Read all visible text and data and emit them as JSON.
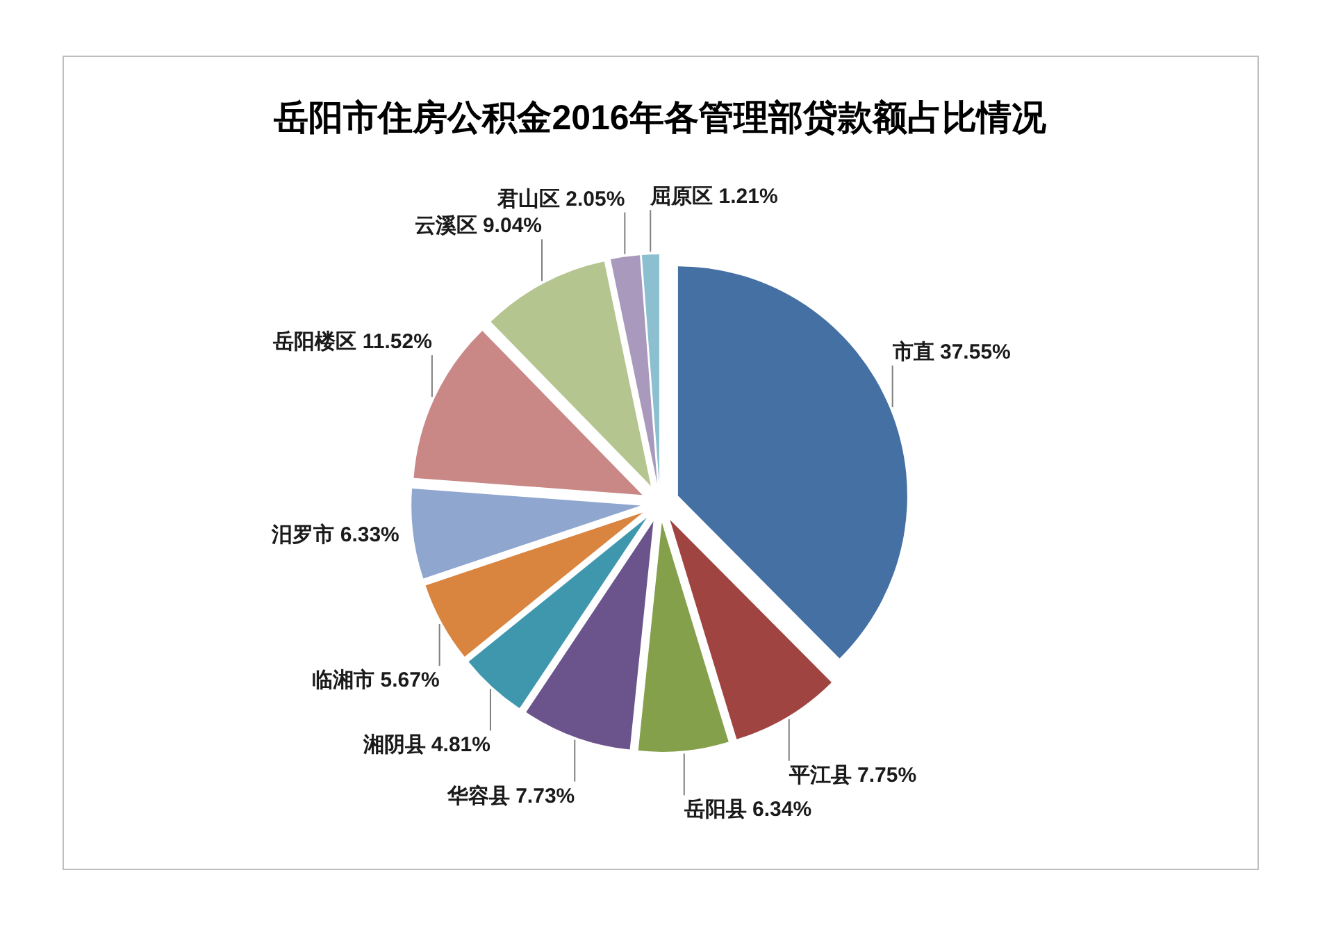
{
  "chart_data": {
    "type": "pie",
    "title": "岳阳市住房公积金2016年各管理部贷款额占比情况",
    "categories": [
      "市直",
      "平江县",
      "岳阳县",
      "华容县",
      "湘阴县",
      "临湘市",
      "汨罗市",
      "岳阳楼区",
      "云溪区",
      "君山区",
      "屈原区"
    ],
    "values": [
      37.55,
      7.75,
      6.34,
      7.73,
      4.81,
      5.67,
      6.33,
      11.52,
      9.04,
      2.05,
      1.21
    ],
    "colors": [
      "#4470a3",
      "#a04442",
      "#84a04b",
      "#6b538c",
      "#3f97ae",
      "#d9843f",
      "#8fa6cf",
      "#c98886",
      "#b4c590",
      "#a899bd",
      "#8cc0d0"
    ],
    "value_labels": [
      "37.55%",
      "7.75%",
      "6.34%",
      "7.73%",
      "4.81%",
      "5.67%",
      "6.33%",
      "11.52%",
      "9.04%",
      "2.05%",
      "1.21%"
    ]
  }
}
